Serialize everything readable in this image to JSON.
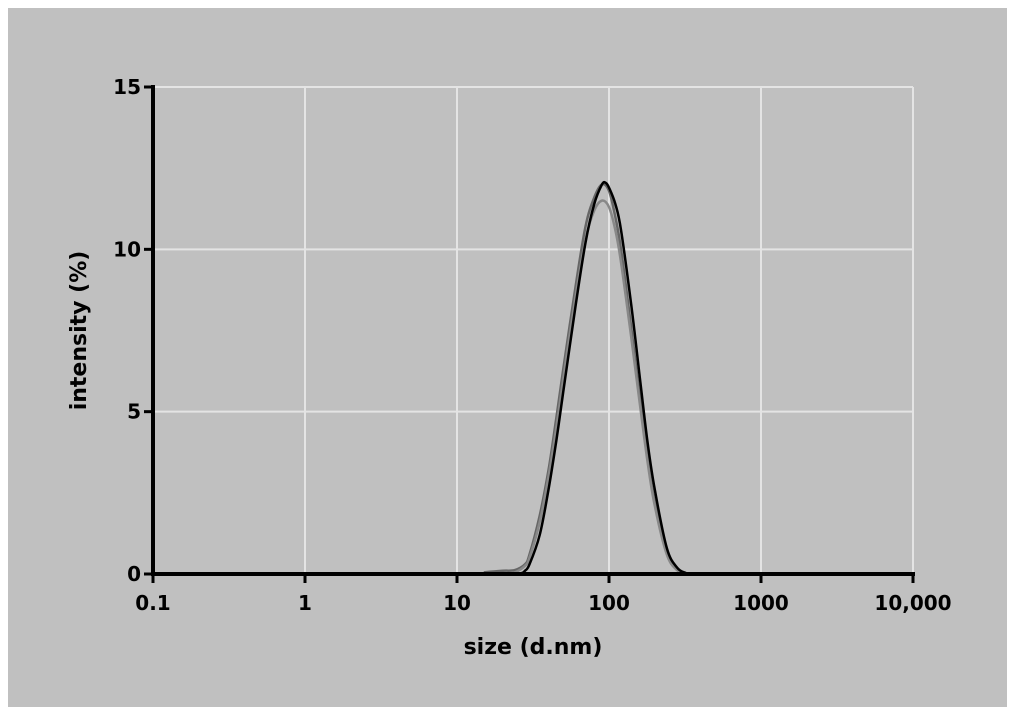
{
  "chart_data": {
    "type": "line",
    "title": "",
    "xlabel": "size (d.nm)",
    "ylabel": "intensity (%)",
    "x_scale": "log",
    "xlim": [
      0.1,
      10000
    ],
    "ylim": [
      0,
      15
    ],
    "grid": true,
    "x_ticks": [
      {
        "value": 0.1,
        "label": "0.1"
      },
      {
        "value": 1,
        "label": "1"
      },
      {
        "value": 10,
        "label": "10"
      },
      {
        "value": 100,
        "label": "100"
      },
      {
        "value": 1000,
        "label": "1000"
      },
      {
        "value": 10000,
        "label": "10,000"
      }
    ],
    "y_ticks": [
      {
        "value": 0,
        "label": "0"
      },
      {
        "value": 5,
        "label": "5"
      },
      {
        "value": 10,
        "label": "10"
      },
      {
        "value": 15,
        "label": "15"
      }
    ],
    "series": [
      {
        "color": "#666666",
        "x": [
          15,
          20,
          24,
          28,
          30,
          35,
          40,
          45,
          50,
          60,
          70,
          80,
          90,
          100,
          110,
          120,
          140,
          160,
          180,
          200,
          240,
          280,
          320,
          340
        ],
        "y": [
          0.05,
          0.1,
          0.12,
          0.3,
          0.6,
          1.8,
          3.2,
          4.8,
          6.3,
          8.8,
          10.7,
          11.6,
          12.0,
          11.8,
          11.0,
          10.0,
          7.6,
          5.4,
          3.5,
          2.2,
          0.7,
          0.15,
          0.02,
          0
        ]
      },
      {
        "color": "#888888",
        "x": [
          20,
          24,
          28,
          30,
          35,
          40,
          45,
          50,
          60,
          70,
          80,
          90,
          100,
          110,
          120,
          140,
          160,
          180,
          200,
          240,
          280,
          320,
          340
        ],
        "y": [
          0,
          0.05,
          0.25,
          0.5,
          1.6,
          3.0,
          4.5,
          6.0,
          8.5,
          10.3,
          11.2,
          11.5,
          11.3,
          10.6,
          9.6,
          7.3,
          5.2,
          3.4,
          2.1,
          0.6,
          0.12,
          0.02,
          0
        ]
      },
      {
        "color": "#000000",
        "x": [
          20,
          26,
          28,
          30,
          35,
          40,
          45,
          50,
          60,
          70,
          80,
          90,
          95,
          100,
          110,
          120,
          140,
          160,
          180,
          200,
          240,
          280,
          320,
          350
        ],
        "y": [
          0,
          0.02,
          0.1,
          0.3,
          1.2,
          2.6,
          4.1,
          5.6,
          8.2,
          10.2,
          11.4,
          12.0,
          12.05,
          11.9,
          11.4,
          10.6,
          8.3,
          6.0,
          4.0,
          2.6,
          0.8,
          0.2,
          0.03,
          0
        ]
      }
    ]
  }
}
